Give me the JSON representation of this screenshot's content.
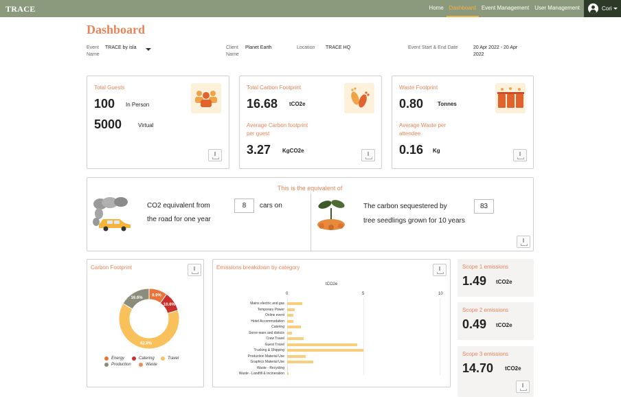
{
  "nav": {
    "brand": "TRACE",
    "links": [
      "Home",
      "Dashboard",
      "Event Management",
      "User Management"
    ],
    "active": "Dashboard",
    "user": "Cori"
  },
  "page": {
    "title": "Dashboard"
  },
  "meta": {
    "event_label": "Event",
    "event_label2": "Name",
    "event_value": "TRACE by isla",
    "client_label": "Client",
    "client_label2": "Name",
    "client_value": "Planet Earth",
    "location_label": "Location",
    "location_value": "TRACE HQ",
    "dates_label": "Event Start & End Date",
    "dates_value_1": "20 Apr 2022 - 20 Apr",
    "dates_value_2": "2022"
  },
  "guests": {
    "label": "Total Guests",
    "in_person_value": "100",
    "in_person_label": "In Person",
    "virtual_value": "5000",
    "virtual_label": "Virtual"
  },
  "carbon": {
    "label": "Total Carbon Footprint",
    "value": "16.68",
    "unit": "tCO2e",
    "avg_label_1": "Average Carbon footprint",
    "avg_label_2": "per guest",
    "avg_value": "3.27",
    "avg_unit": "KgCO2e"
  },
  "waste": {
    "label": "Waste Footprint",
    "value": "0.80",
    "unit": "Tonnes",
    "avg_label_1": "Average Waste per",
    "avg_label_2": "attendee",
    "avg_value": "0.16",
    "avg_unit": "Kg"
  },
  "equivalent": {
    "heading": "This is the equivalent of",
    "cars_text_1": "CO2 equivalent from",
    "cars_value": "8",
    "cars_text_2": "cars on",
    "cars_text_3": "the road for one year",
    "trees_text_1": "The carbon sequestered by",
    "trees_value": "83",
    "trees_text_2": "tree seedlings grown for 10 years"
  },
  "scopes": [
    {
      "label": "Scope 1 emissions",
      "value": "1.49",
      "unit": "tCO2e"
    },
    {
      "label": "Scope 2 emissions",
      "value": "0.49",
      "unit": "tCO2e"
    },
    {
      "label": "Scope 3 emissions",
      "value": "14.70",
      "unit": "tCO2e"
    }
  ],
  "colors": {
    "accent": "#e8845a",
    "energy": "#e8743b",
    "catering": "#c9302c",
    "travel": "#f9c15c",
    "production": "#8c8c7a",
    "waste": "#ed8b5e",
    "bar": "#f9cf7c",
    "nav": "#8b9a7d"
  },
  "chart_data": [
    {
      "type": "pie",
      "title": "Carbon Footprint",
      "labels": [
        "Energy",
        "Catering",
        "Travel",
        "Production",
        "Waste"
      ],
      "values": [
        9.9,
        10.6,
        62.9,
        16.6,
        0.0
      ],
      "value_labels": [
        "9.9%",
        "10.6%",
        "62.9%",
        "16.6%",
        ""
      ],
      "legend": "bottom"
    },
    {
      "type": "bar",
      "orientation": "horizontal",
      "title": "Emissions breakdown by category",
      "xlabel": "tCO2e",
      "xlim": [
        0,
        10
      ],
      "xticks": [
        "0",
        "5",
        "10"
      ],
      "categories": [
        "Mains electric and gas",
        "Temporary Power",
        "Online event",
        "Hotel Accommodation",
        "Catering",
        "Serve-ware and disticts",
        "Crew Travel",
        "Guest Travel",
        "Trucking & Shipping",
        "Production Material Use",
        "Graphics Material Use",
        "Waste - Recycling",
        "Waste - Landfill & Incineration"
      ],
      "values": [
        1.0,
        0.5,
        0.4,
        0.4,
        0.9,
        0.3,
        1.1,
        4.6,
        5.0,
        1.2,
        1.7,
        0.0,
        0.1
      ]
    }
  ]
}
